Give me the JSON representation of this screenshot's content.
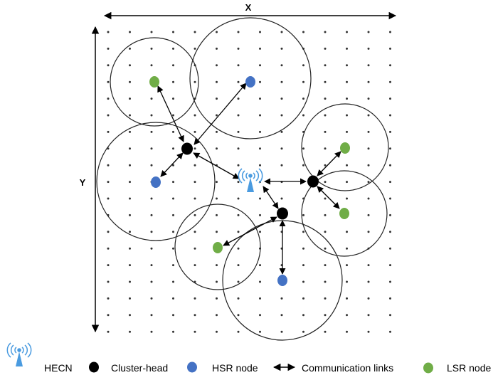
{
  "axes": {
    "x_label": "X",
    "y_label": "Y"
  },
  "legend": {
    "hecn": "HECN",
    "cluster_head": "Cluster-head",
    "hsr_node": "HSR node",
    "links": "Communication links",
    "lsr_node": "LSR node"
  },
  "colors": {
    "hecn": "#4a9be0",
    "cluster_head": "#000000",
    "hsr_node": "#4472c4",
    "lsr_node": "#70ad47",
    "grid_dot": "#333333",
    "circle_stroke": "#222222"
  },
  "icons": {
    "hecn": "antenna-icon"
  }
}
